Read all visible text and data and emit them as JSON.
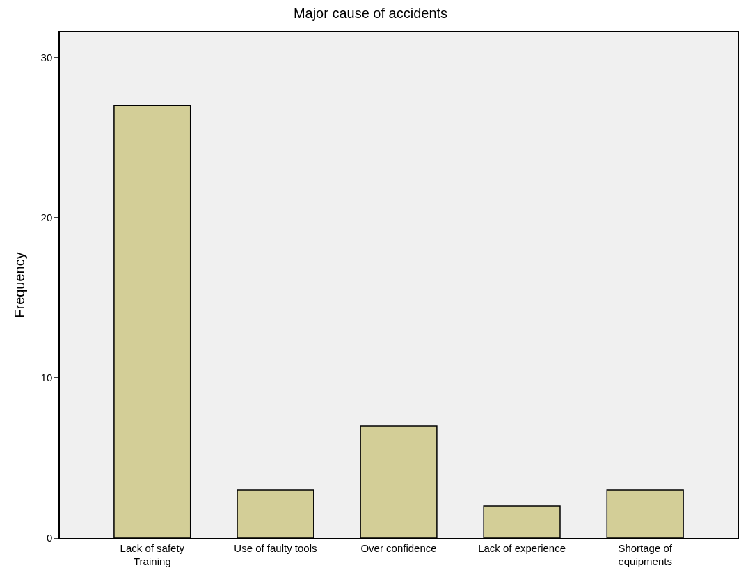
{
  "chart_data": {
    "type": "bar",
    "title": "Major cause of accidents",
    "ylabel": "Frequency",
    "categories": [
      "Lack of safety\nTraining",
      "Use of faulty tools",
      "Over confidence",
      "Lack of experience",
      "Shortage of\nequipments"
    ],
    "values": [
      27,
      3,
      7,
      2,
      3
    ],
    "color": "#d3ce97",
    "ylim": [
      0,
      31.6
    ],
    "yticks": [
      0,
      10,
      20,
      30
    ],
    "grid": false,
    "legend": false
  }
}
